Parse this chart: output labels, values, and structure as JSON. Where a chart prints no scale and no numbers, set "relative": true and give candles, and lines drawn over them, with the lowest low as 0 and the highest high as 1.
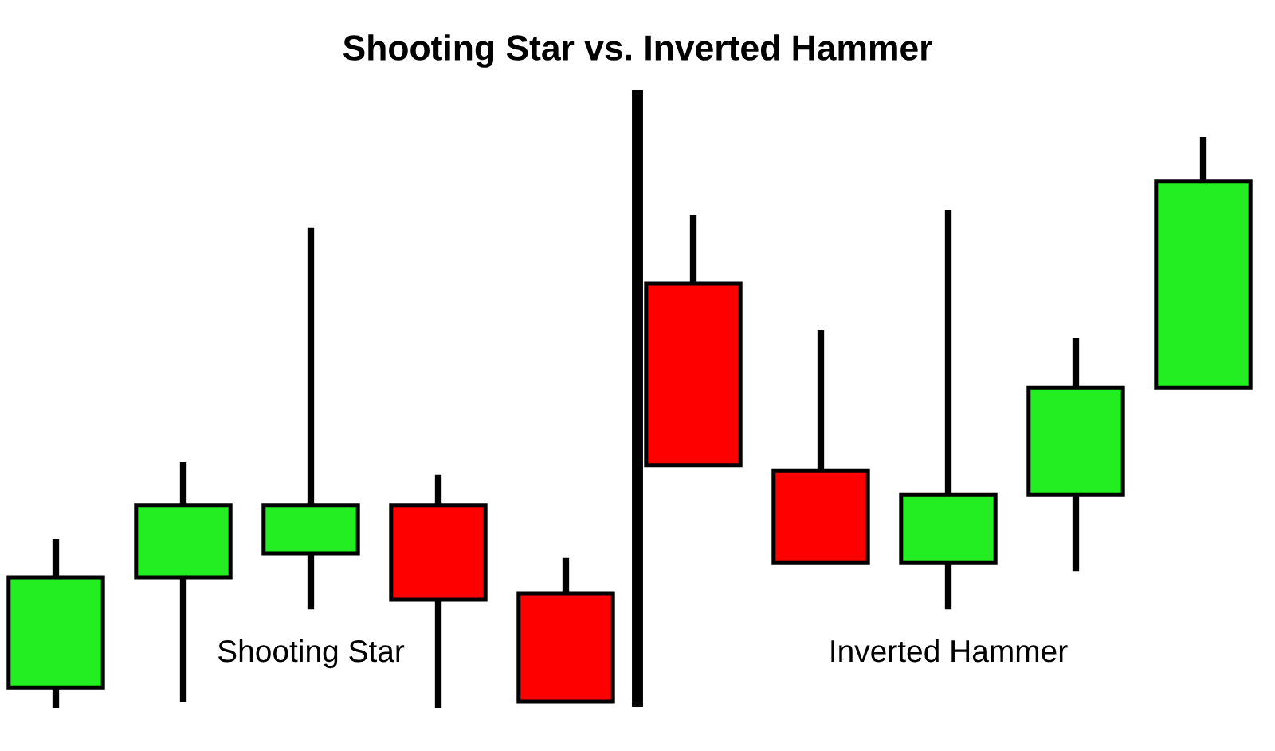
{
  "chart_data": {
    "type": "candlestick",
    "title": "Shooting Star vs. Inverted Hammer",
    "relative": true,
    "categories": [
      null,
      null,
      null,
      null,
      null,
      null,
      null,
      null,
      null,
      null
    ],
    "ohlc": [
      [
        0.036,
        0.296,
        0,
        0.229
      ],
      [
        0.229,
        0.43,
        0.011,
        0.355
      ],
      [
        0.271,
        0.841,
        0.173,
        0.355
      ],
      [
        0.355,
        0.408,
        0,
        0.19
      ],
      [
        0.201,
        0.263,
        0.011,
        0.011
      ],
      [
        0.743,
        0.863,
        0.425,
        0.425
      ],
      [
        0.416,
        0.662,
        0.254,
        0.254
      ],
      [
        0.254,
        0.872,
        0.173,
        0.374
      ],
      [
        0.374,
        0.648,
        0.24,
        0.561
      ],
      [
        0.561,
        1,
        0.561,
        0.922
      ]
    ],
    "colors": [
      "#22ee22",
      "#22ee22",
      "#22ee22",
      "#ff0000",
      "#ff0000",
      "#ff0000",
      "#ff0000",
      "#22ee22",
      "#22ee22",
      "#22ee22"
    ],
    "annotations": [
      "Shooting Star",
      "Inverted Hammer"
    ]
  }
}
